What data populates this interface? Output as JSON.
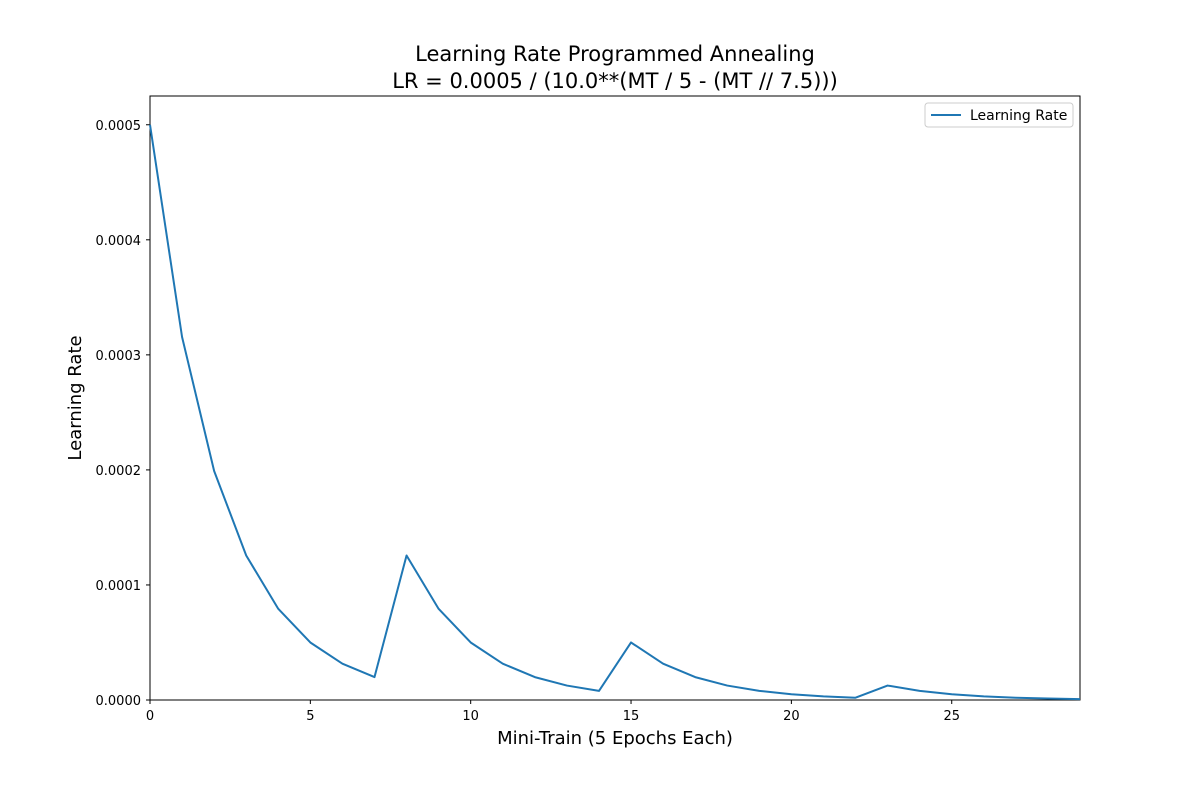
{
  "chart_data": {
    "type": "line",
    "title": "Learning Rate Programmed Annealing",
    "subtitle": "LR = 0.0005 / (10.0**(MT / 5 - (MT // 7.5)))",
    "xlabel": "Mini-Train (5 Epochs Each)",
    "ylabel": "Learning Rate",
    "xlim": [
      0,
      29
    ],
    "ylim": [
      0,
      0.000525
    ],
    "x_ticks": [
      0,
      5,
      10,
      15,
      20,
      25
    ],
    "x_tick_labels": [
      "0",
      "5",
      "10",
      "15",
      "20",
      "25"
    ],
    "y_ticks": [
      0,
      0.0001,
      0.0002,
      0.0003,
      0.0004,
      0.0005
    ],
    "y_tick_labels": [
      "0.0000",
      "0.0001",
      "0.0002",
      "0.0003",
      "0.0004",
      "0.0005"
    ],
    "grid": false,
    "legend_position": "top-right",
    "series": [
      {
        "name": "Learning Rate",
        "color": "#1f77b4",
        "x": [
          0,
          1,
          2,
          3,
          4,
          5,
          6,
          7,
          8,
          9,
          10,
          11,
          12,
          13,
          14,
          15,
          16,
          17,
          18,
          19,
          20,
          21,
          22,
          23,
          24,
          25,
          26,
          27,
          28,
          29
        ],
        "y": [
          0.0005,
          0.0003155,
          0.00019905,
          0.00012559,
          7.924e-05,
          5e-05,
          3.155e-05,
          1.99e-05,
          0.00012559,
          7.924e-05,
          5e-05,
          3.155e-05,
          1.99e-05,
          1.256e-05,
          7.92e-06,
          5e-05,
          3.155e-05,
          1.99e-05,
          1.256e-05,
          7.92e-06,
          5e-06,
          3.15e-06,
          2e-06,
          1.256e-05,
          7.92e-06,
          5e-06,
          3.15e-06,
          2e-06,
          1.26e-06,
          7.9e-07
        ]
      }
    ]
  }
}
